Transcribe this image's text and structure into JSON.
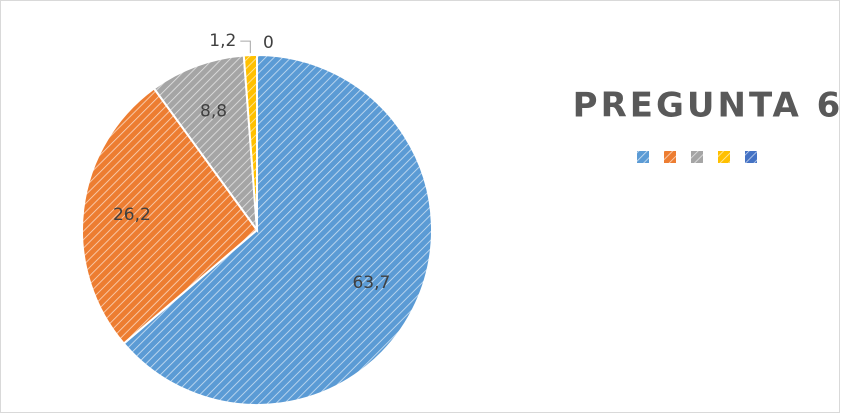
{
  "chart_data": {
    "type": "pie",
    "title": "PREGUNTA 6",
    "categories": [
      null,
      null,
      null,
      null,
      null
    ],
    "values": [
      63.7,
      26.2,
      8.8,
      1.2,
      0
    ],
    "value_labels": [
      "63,7",
      "26,2",
      "8,8",
      "1,2",
      "0"
    ],
    "colors": [
      "#5b9bd5",
      "#ed7d31",
      "#a5a5a5",
      "#ffc000",
      "#4472c4"
    ]
  }
}
